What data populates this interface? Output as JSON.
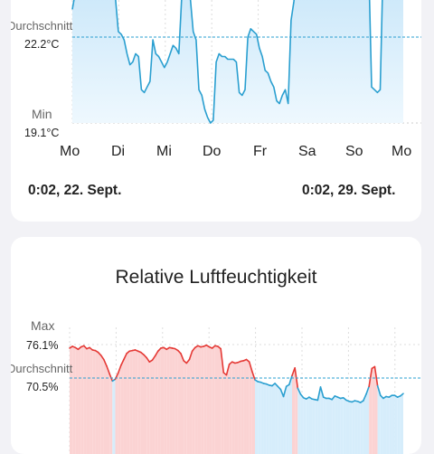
{
  "temperature_card": {
    "average_label": "Durchschnitt",
    "average_value": "22.2°C",
    "min_label": "Min",
    "min_value": "19.1°C",
    "days": [
      "Mo",
      "Di",
      "Mi",
      "Do",
      "Fr",
      "Sa",
      "So",
      "Mo"
    ],
    "range_start": "0:02,  22. Sept.",
    "range_end": "0:02,  29. Sept.",
    "colors": {
      "line": "#2a9fd0",
      "fill": "#d6edfb",
      "avg_line": "#2a9fd0"
    }
  },
  "humidity_card": {
    "title": "Relative Luftfeuchtigkeit",
    "max_label": "Max",
    "max_value": "76.1%",
    "average_label": "Durchschnitt",
    "average_value": "70.5%",
    "colors": {
      "high_line": "#e53935",
      "high_fill": "#fbd3d3",
      "low_line": "#2a9fd0",
      "low_fill": "#d6edfb",
      "avg_line": "#2a9fd0"
    }
  },
  "chart_data": [
    {
      "type": "area",
      "title": "",
      "xlabel": "",
      "ylabel": "",
      "x_ticks": [
        "Mo",
        "Di",
        "Mi",
        "Do",
        "Fr",
        "Sa",
        "So",
        "Mo"
      ],
      "unit": "°C",
      "reference_lines": [
        {
          "label": "Durchschnitt",
          "value": 22.2
        },
        {
          "label": "Min",
          "value": 19.1
        }
      ],
      "series": [
        {
          "values": [
            23.2,
            23.8,
            24.8,
            24.6,
            24.4,
            24.5,
            24.3,
            24.2,
            24.3,
            24.4,
            24.5,
            24.6,
            24.5,
            24.3,
            24.1,
            23.6,
            22.4,
            22.3,
            22.1,
            21.6,
            21.2,
            21.3,
            21.6,
            21.5,
            20.3,
            20.2,
            20.4,
            20.6,
            22.1,
            21.6,
            21.5,
            21.3,
            21.1,
            21.3,
            21.6,
            21.9,
            21.8,
            21.6,
            23.6,
            23.9,
            24.1,
            23.6,
            22.4,
            22.1,
            20.3,
            20.1,
            19.6,
            19.3,
            19.1,
            19.2,
            21.3,
            21.6,
            21.5,
            21.5,
            21.4,
            21.4,
            21.4,
            21.3,
            20.2,
            20.1,
            20.3,
            22.2,
            22.5,
            22.4,
            22.3,
            21.8,
            21.5,
            21.0,
            20.9,
            20.6,
            20.4,
            19.9,
            19.8,
            20.1,
            20.3,
            19.8,
            22.8,
            23.5,
            24.4,
            25.0,
            25.4,
            25.6,
            25.2,
            24.9,
            24.5,
            24.8,
            25.3,
            25.5,
            25.2,
            24.7,
            25.1,
            24.9,
            25.0,
            25.2,
            25.4,
            25.3,
            24.9,
            25.1,
            25.5,
            25.7,
            25.4,
            25.3,
            25.0,
            24.8,
            20.4,
            20.3,
            20.2,
            20.3,
            24.8,
            25.3,
            25.6,
            25.5,
            25.4,
            25.3,
            25.5,
            25.6
          ]
        }
      ]
    },
    {
      "type": "area",
      "title": "Relative Luftfeuchtigkeit",
      "xlabel": "",
      "ylabel": "",
      "unit": "%",
      "reference_lines": [
        {
          "label": "Max",
          "value": 76.1
        },
        {
          "label": "Durchschnitt",
          "value": 70.5
        }
      ],
      "series": [
        {
          "values": [
            75.5,
            75.8,
            75.6,
            75.3,
            75.7,
            75.9,
            75.4,
            75.6,
            75.2,
            75.1,
            74.8,
            74.3,
            73.6,
            72.5,
            71.2,
            70.0,
            70.3,
            71.3,
            72.6,
            73.6,
            74.6,
            75.0,
            75.1,
            75.2,
            75.0,
            74.8,
            74.4,
            73.9,
            73.2,
            73.5,
            74.2,
            75.0,
            75.5,
            75.6,
            75.3,
            75.6,
            75.5,
            75.4,
            75.1,
            74.6,
            73.4,
            73.0,
            73.6,
            75.0,
            75.6,
            75.9,
            75.7,
            75.8,
            76.0,
            75.7,
            75.5,
            75.9,
            75.8,
            75.4,
            71.4,
            71.0,
            72.8,
            73.2,
            73.0,
            73.1,
            73.3,
            73.4,
            73.6,
            73.2,
            71.6,
            70.2,
            69.9,
            69.8,
            69.6,
            69.5,
            69.3,
            69.2,
            69.6,
            69.1,
            68.6,
            67.4,
            69.1,
            69.4,
            70.9,
            72.2,
            68.8,
            67.8,
            67.2,
            67.0,
            67.3,
            67.0,
            66.9,
            66.8,
            69.0,
            67.3,
            67.1,
            67.1,
            66.9,
            67.5,
            67.3,
            67.1,
            67.2,
            66.8,
            66.6,
            66.5,
            66.7,
            66.6,
            66.4,
            66.7,
            67.8,
            69.1,
            72.1,
            72.4,
            69.2,
            67.6,
            67.1,
            67.4,
            67.3,
            67.6,
            67.6,
            67.3,
            67.5,
            67.9
          ]
        }
      ]
    }
  ]
}
